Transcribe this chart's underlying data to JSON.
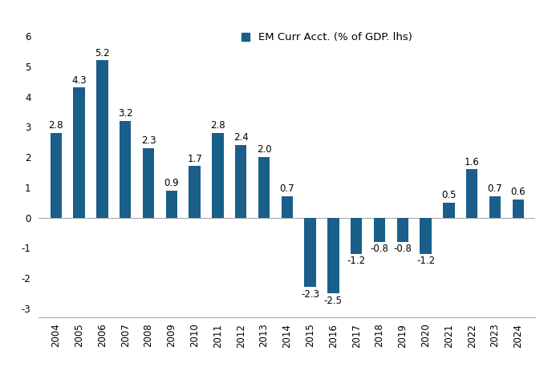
{
  "years": [
    2004,
    2005,
    2006,
    2007,
    2008,
    2009,
    2010,
    2011,
    2012,
    2013,
    2014,
    2015,
    2016,
    2017,
    2018,
    2019,
    2020,
    2021,
    2022,
    2023,
    2024
  ],
  "values": [
    2.8,
    4.3,
    5.2,
    3.2,
    2.3,
    0.9,
    1.7,
    2.8,
    2.4,
    2.0,
    0.7,
    -2.3,
    -2.5,
    -1.2,
    -0.8,
    -0.8,
    -1.2,
    0.5,
    1.6,
    0.7,
    0.6
  ],
  "bar_color": "#1a5f8a",
  "background_color": "#ffffff",
  "legend_label": "EM Curr Acct. (% of GDP. lhs)",
  "ylim": [
    -3.3,
    6.3
  ],
  "yticks": [
    -3,
    -2,
    -1,
    0,
    1,
    2,
    3,
    4,
    5,
    6
  ],
  "label_fontsize": 8.5,
  "tick_fontsize": 8.5,
  "legend_fontsize": 9.5,
  "bar_width": 0.5
}
